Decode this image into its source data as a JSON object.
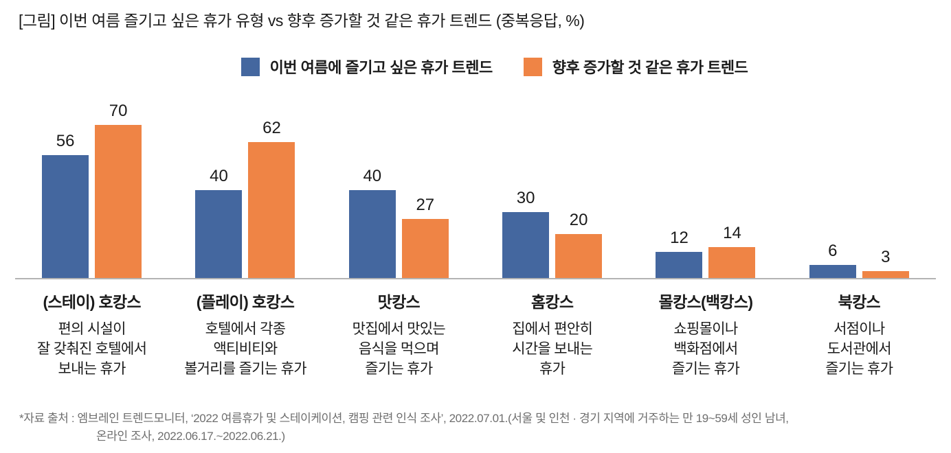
{
  "title": "[그림] 이번 여름 즐기고 싶은 휴가 유형 vs 향후 증가할 것 같은 휴가 트렌드 (중복응답, %)",
  "legend": [
    {
      "label": "이번 여름에 즐기고 싶은 휴가 트렌드",
      "color": "#44679F"
    },
    {
      "label": "향후 증가할 것 같은 휴가 트렌드",
      "color": "#EF8445"
    }
  ],
  "chart_data": {
    "type": "bar",
    "categories": [
      "(스테이) 호캉스",
      "(플레이) 호캉스",
      "맛캉스",
      "홈캉스",
      "몰캉스(백캉스)",
      "북캉스"
    ],
    "descriptions": [
      [
        "편의 시설이",
        "잘 갖춰진 호텔에서",
        "보내는 휴가"
      ],
      [
        "호텔에서 각종",
        "액티비티와",
        "볼거리를 즐기는 휴가"
      ],
      [
        "맛집에서 맛있는",
        "음식을 먹으며",
        "즐기는 휴가"
      ],
      [
        "집에서 편안히",
        "시간을 보내는",
        "휴가"
      ],
      [
        "쇼핑몰이나",
        "백화점에서",
        "즐기는 휴가"
      ],
      [
        "서점이나",
        "도서관에서",
        "즐기는 휴가"
      ]
    ],
    "series": [
      {
        "name": "이번 여름에 즐기고 싶은 휴가 트렌드",
        "color": "#44679F",
        "values": [
          56,
          40,
          40,
          30,
          12,
          6
        ]
      },
      {
        "name": "향후 증가할 것 같은 휴가 트렌드",
        "color": "#EF8445",
        "values": [
          70,
          62,
          27,
          20,
          14,
          3
        ]
      }
    ],
    "title": "[그림] 이번 여름 즐기고 싶은 휴가 유형 vs 향후 증가할 것 같은 휴가 트렌드 (중복응답, %)",
    "xlabel": "",
    "ylabel": "",
    "ylim": [
      0,
      75
    ],
    "grid": false,
    "y_axis_visible": false,
    "value_labels": true,
    "legend_position": "top"
  },
  "footer": {
    "line1": "*자료 출처 : 엠브레인 트렌드모니터, ‘2022 여름휴가 및 스테이케이션, 캠핑 관련 인식 조사’, 2022.07.01.(서울 및 인천 · 경기 지역에 거주하는 만 19~59세 성인 남녀,",
    "line2": "온라인 조사, 2022.06.17.~2022.06.21.)"
  }
}
